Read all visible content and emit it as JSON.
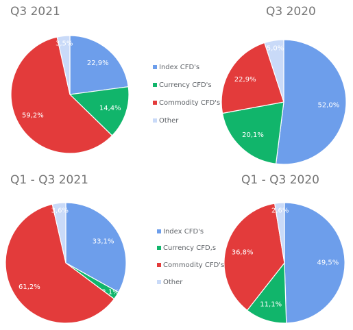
{
  "chart_data": [
    {
      "type": "pie",
      "title": "Q3 2021",
      "slices": [
        {
          "name": "Index CFD's",
          "value": 22.9,
          "label": "22,9%"
        },
        {
          "name": "Currency CFD's",
          "value": 14.4,
          "label": "14,4%"
        },
        {
          "name": "Commodity CFD's",
          "value": 59.2,
          "label": "59,2%"
        },
        {
          "name": "Other",
          "value": 3.5,
          "label": "3,5%"
        }
      ]
    },
    {
      "type": "pie",
      "title": "Q3 2020",
      "slices": [
        {
          "name": "Index CFD's",
          "value": 52.0,
          "label": "52,0%"
        },
        {
          "name": "Currency CFD's",
          "value": 20.1,
          "label": "20,1%"
        },
        {
          "name": "Commodity CFD's",
          "value": 22.9,
          "label": "22,9%"
        },
        {
          "name": "Other",
          "value": 5.0,
          "label": "5,0%"
        }
      ]
    },
    {
      "type": "pie",
      "title": "Q1 - Q3 2021",
      "slices": [
        {
          "name": "Index CFD's",
          "value": 33.1,
          "label": "33,1%"
        },
        {
          "name": "Currency CFD,s",
          "value": 2.1,
          "label": "2,1%"
        },
        {
          "name": "Commodity CFD's",
          "value": 61.2,
          "label": "61,2%"
        },
        {
          "name": "Other",
          "value": 3.6,
          "label": "3,6%"
        }
      ]
    },
    {
      "type": "pie",
      "title": "Q1 - Q3 2020",
      "slices": [
        {
          "name": "Index CFD's",
          "value": 49.5,
          "label": "49,5%"
        },
        {
          "name": "Currency CFD,s",
          "value": 11.1,
          "label": "11,1%"
        },
        {
          "name": "Commodity CFD's",
          "value": 36.8,
          "label": "36,8%"
        },
        {
          "name": "Other",
          "value": 2.6,
          "label": "2,6%"
        }
      ]
    }
  ],
  "legends": [
    {
      "items": [
        "Index CFD's",
        "Currency CFD's",
        "Commodity CFD's",
        "Other"
      ]
    },
    {
      "items": [
        "Index CFD's",
        "Currency CFD,s",
        "Commodity CFD's",
        "Other"
      ]
    }
  ],
  "colors": {
    "index": "#6d9eeb",
    "currency": "#11b56b",
    "commodity": "#e33b3b",
    "other": "#c9daf8"
  }
}
